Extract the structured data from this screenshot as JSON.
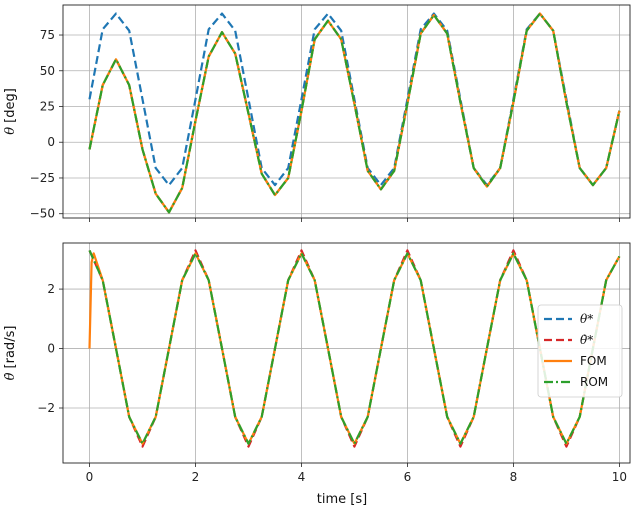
{
  "chart_data": [
    {
      "type": "line",
      "ylabel_symbol": "θ",
      "ylabel_unit": "[deg]",
      "xlim": [
        -0.5,
        10.2
      ],
      "ylim": [
        -53,
        96
      ],
      "yticks": [
        -50,
        -25,
        0,
        25,
        50,
        75
      ],
      "ytick_labels": [
        "−50",
        "−25",
        "0",
        "25",
        "50",
        "75"
      ],
      "xticks": [
        0,
        2,
        4,
        6,
        8,
        10
      ],
      "grid": true,
      "series": [
        {
          "name": "θ*",
          "color": "#1f77b4",
          "dash": "dashed",
          "x": [
            0,
            0.25,
            0.5,
            0.75,
            1,
            1.25,
            1.5,
            1.75,
            2,
            2.25,
            2.5,
            2.75,
            3,
            3.25,
            3.5,
            3.75,
            4,
            4.25,
            4.5,
            4.75,
            5,
            5.25,
            5.5,
            5.75,
            6,
            6.25,
            6.5,
            6.75,
            7,
            7.25,
            7.5,
            7.75,
            8,
            8.25,
            8.5,
            8.75,
            9,
            9.25,
            9.5,
            9.75,
            10
          ],
          "y": [
            30,
            79,
            90,
            78,
            30,
            -18,
            -30,
            -18,
            30,
            79,
            90,
            78,
            30,
            -18,
            -30,
            -18,
            30,
            79,
            90,
            78,
            30,
            -18,
            -30,
            -18,
            30,
            79,
            90,
            78,
            30,
            -18,
            -30,
            -18,
            30,
            79,
            90,
            78,
            30,
            -18,
            -30,
            -18,
            22
          ]
        },
        {
          "name": "θ*",
          "color": "#d62728",
          "dash": "dashed",
          "x": [
            0,
            0.25,
            0.5,
            0.75,
            1,
            1.25,
            1.5,
            1.75,
            2,
            2.25,
            2.5,
            2.75,
            3,
            3.25,
            3.5,
            3.75,
            4,
            4.25,
            4.5,
            4.75,
            5,
            5.25,
            5.5,
            5.75,
            6,
            6.25,
            6.5,
            6.75,
            7,
            7.25,
            7.5,
            7.75,
            8,
            8.25,
            8.5,
            8.75,
            9,
            9.25,
            9.5,
            9.75,
            10
          ],
          "y": [
            -5,
            40,
            58,
            40,
            -5,
            -36,
            -49,
            -32,
            15,
            60,
            77,
            62,
            20,
            -22,
            -37,
            -25,
            22,
            72,
            85,
            72,
            27,
            -20,
            -33,
            -20,
            27,
            76,
            89,
            76,
            28,
            -18,
            -31,
            -18,
            28,
            78,
            90,
            78,
            28,
            -18,
            -30,
            -18,
            22
          ]
        },
        {
          "name": "FOM",
          "color": "#ff7f0e",
          "dash": "solid",
          "x": [
            0,
            0.25,
            0.5,
            0.75,
            1,
            1.25,
            1.5,
            1.75,
            2,
            2.25,
            2.5,
            2.75,
            3,
            3.25,
            3.5,
            3.75,
            4,
            4.25,
            4.5,
            4.75,
            5,
            5.25,
            5.5,
            5.75,
            6,
            6.25,
            6.5,
            6.75,
            7,
            7.25,
            7.5,
            7.75,
            8,
            8.25,
            8.5,
            8.75,
            9,
            9.25,
            9.5,
            9.75,
            10
          ],
          "y": [
            -5,
            40,
            58,
            40,
            -5,
            -36,
            -49,
            -32,
            15,
            60,
            77,
            62,
            20,
            -22,
            -37,
            -25,
            22,
            72,
            85,
            72,
            27,
            -20,
            -33,
            -20,
            27,
            76,
            89,
            76,
            28,
            -18,
            -31,
            -18,
            28,
            78,
            90,
            78,
            28,
            -18,
            -30,
            -18,
            22
          ]
        },
        {
          "name": "ROM",
          "color": "#2ca02c",
          "dash": "dashdot",
          "x": [
            0,
            0.25,
            0.5,
            0.75,
            1,
            1.25,
            1.5,
            1.75,
            2,
            2.25,
            2.5,
            2.75,
            3,
            3.25,
            3.5,
            3.75,
            4,
            4.25,
            4.5,
            4.75,
            5,
            5.25,
            5.5,
            5.75,
            6,
            6.25,
            6.5,
            6.75,
            7,
            7.25,
            7.5,
            7.75,
            8,
            8.25,
            8.5,
            8.75,
            9,
            9.25,
            9.5,
            9.75,
            10
          ],
          "y": [
            -5,
            40,
            58,
            40,
            -5,
            -36,
            -49,
            -32,
            15,
            60,
            77,
            62,
            20,
            -22,
            -37,
            -25,
            22,
            72,
            85,
            72,
            27,
            -20,
            -33,
            -20,
            27,
            76,
            89,
            76,
            28,
            -18,
            -31,
            -18,
            28,
            78,
            90,
            78,
            28,
            -18,
            -30,
            -18,
            22
          ]
        }
      ]
    },
    {
      "type": "line",
      "ylabel_symbol": "θ̇",
      "ylabel_unit": "[rad/s]",
      "xlabel": "time [s]",
      "xlim": [
        -0.5,
        10.2
      ],
      "ylim": [
        -3.85,
        3.55
      ],
      "yticks": [
        -2,
        0,
        2
      ],
      "ytick_labels": [
        "−2",
        "0",
        "2"
      ],
      "xticks": [
        0,
        2,
        4,
        6,
        8,
        10
      ],
      "xtick_labels": [
        "0",
        "2",
        "4",
        "6",
        "8",
        "10"
      ],
      "grid": true,
      "legend_position": "center-right",
      "legend": [
        "θ*",
        "θ̇*",
        "FOM",
        "ROM"
      ],
      "series": [
        {
          "name": "θ̇*",
          "color": "#d62728",
          "dash": "dashed",
          "x": [
            0,
            0.25,
            0.5,
            0.75,
            1,
            1.25,
            1.5,
            1.75,
            2,
            2.25,
            2.5,
            2.75,
            3,
            3.25,
            3.5,
            3.75,
            4,
            4.25,
            4.5,
            4.75,
            5,
            5.25,
            5.5,
            5.75,
            6,
            6.25,
            6.5,
            6.75,
            7,
            7.25,
            7.5,
            7.75,
            8,
            8.25,
            8.5,
            8.75,
            9,
            9.25,
            9.5,
            9.75,
            10
          ],
          "y": [
            3.3,
            2.3,
            0.0,
            -2.3,
            -3.3,
            -2.3,
            0.0,
            2.3,
            3.3,
            2.3,
            0.0,
            -2.3,
            -3.3,
            -2.3,
            0.0,
            2.3,
            3.3,
            2.3,
            0.0,
            -2.3,
            -3.3,
            -2.3,
            0.0,
            2.3,
            3.3,
            2.3,
            0.0,
            -2.3,
            -3.3,
            -2.3,
            0.0,
            2.3,
            3.3,
            2.3,
            0.0,
            -2.3,
            -3.3,
            -2.3,
            0.0,
            2.3,
            3.1
          ]
        },
        {
          "name": "FOM",
          "color": "#ff7f0e",
          "dash": "solid",
          "x": [
            0,
            0.04,
            0.08,
            0.25,
            0.5,
            0.75,
            1,
            1.25,
            1.5,
            1.75,
            2,
            2.25,
            2.5,
            2.75,
            3,
            3.25,
            3.5,
            3.75,
            4,
            4.25,
            4.5,
            4.75,
            5,
            5.25,
            5.5,
            5.75,
            6,
            6.25,
            6.5,
            6.75,
            7,
            7.25,
            7.5,
            7.75,
            8,
            8.25,
            8.5,
            8.75,
            9,
            9.25,
            9.5,
            9.75,
            10
          ],
          "y": [
            0.0,
            2.9,
            3.2,
            2.3,
            0.0,
            -2.3,
            -3.2,
            -2.3,
            0.0,
            2.3,
            3.2,
            2.3,
            0.0,
            -2.3,
            -3.2,
            -2.3,
            0.0,
            2.3,
            3.2,
            2.3,
            0.0,
            -2.3,
            -3.2,
            -2.3,
            0.0,
            2.3,
            3.2,
            2.3,
            0.0,
            -2.3,
            -3.2,
            -2.3,
            0.0,
            2.3,
            3.2,
            2.3,
            0.0,
            -2.3,
            -3.2,
            -2.3,
            0.0,
            2.3,
            3.1
          ]
        },
        {
          "name": "ROM",
          "color": "#2ca02c",
          "dash": "dashdot",
          "x": [
            0,
            0.25,
            0.5,
            0.75,
            1,
            1.25,
            1.5,
            1.75,
            2,
            2.25,
            2.5,
            2.75,
            3,
            3.25,
            3.5,
            3.75,
            4,
            4.25,
            4.5,
            4.75,
            5,
            5.25,
            5.5,
            5.75,
            6,
            6.25,
            6.5,
            6.75,
            7,
            7.25,
            7.5,
            7.75,
            8,
            8.25,
            8.5,
            8.75,
            9,
            9.25,
            9.5,
            9.75,
            10
          ],
          "y": [
            3.3,
            2.3,
            0.0,
            -2.3,
            -3.2,
            -2.3,
            0.0,
            2.3,
            3.2,
            2.3,
            0.0,
            -2.3,
            -3.2,
            -2.3,
            0.0,
            2.3,
            3.2,
            2.3,
            0.0,
            -2.3,
            -3.2,
            -2.3,
            0.0,
            2.3,
            3.2,
            2.3,
            0.0,
            -2.3,
            -3.2,
            -2.3,
            0.0,
            2.3,
            3.2,
            2.3,
            0.0,
            -2.3,
            -3.2,
            -2.3,
            0.0,
            2.3,
            3.1
          ]
        }
      ]
    }
  ]
}
